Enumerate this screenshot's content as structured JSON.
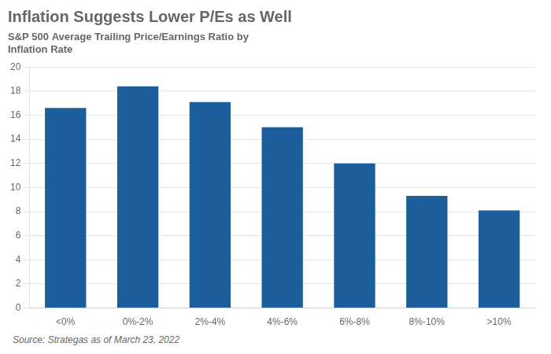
{
  "chart_data": {
    "type": "bar",
    "title": "Inflation Suggests Lower P/Es as Well",
    "subtitle": "S&P 500 Average Trailing Price/Earnings Ratio by\nInflation Rate",
    "source": "Source: Strategas as of March 23, 2022",
    "categories": [
      "<0%",
      "0%-2%",
      "2%-4%",
      "4%-6%",
      "6%-8%",
      "8%-10%",
      ">10%"
    ],
    "values": [
      16.6,
      18.4,
      17.1,
      15.0,
      12.0,
      9.3,
      8.1
    ],
    "color": "#1B5E9B",
    "ylim": [
      0,
      20
    ],
    "yticks": [
      0,
      2,
      4,
      6,
      8,
      10,
      12,
      14,
      16,
      18,
      20
    ],
    "grid": true
  }
}
